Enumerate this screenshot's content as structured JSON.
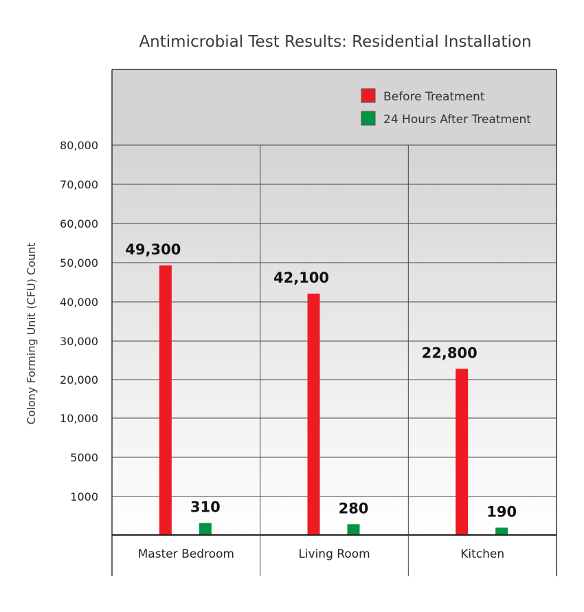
{
  "chart_data": {
    "type": "bar",
    "title": "Antimicrobial Test Results: Residential Installation",
    "ylabel": "Colony Forming Unit (CFU) Count",
    "xlabel": "",
    "categories": [
      "Master Bedroom",
      "Living Room",
      "Kitchen"
    ],
    "y_tick_labels": [
      "1000",
      "5000",
      "10,000",
      "20,000",
      "30,000",
      "40,000",
      "50,000",
      "60,000",
      "70,000",
      "80,000"
    ],
    "axis_scale": "non-linear (ticks 0, 1000, 5000, then 10,000 steps)",
    "grid": true,
    "legend_position": "top-right",
    "series": [
      {
        "name": "Before Treatment",
        "color": "#ed1c24",
        "values": [
          49300,
          42100,
          22800
        ],
        "labels": [
          "49,300",
          "42,100",
          "22,800"
        ]
      },
      {
        "name": "24 Hours After Treatment",
        "color": "#009444",
        "values": [
          310,
          280,
          190
        ],
        "labels": [
          "310",
          "280",
          "190"
        ]
      }
    ]
  }
}
